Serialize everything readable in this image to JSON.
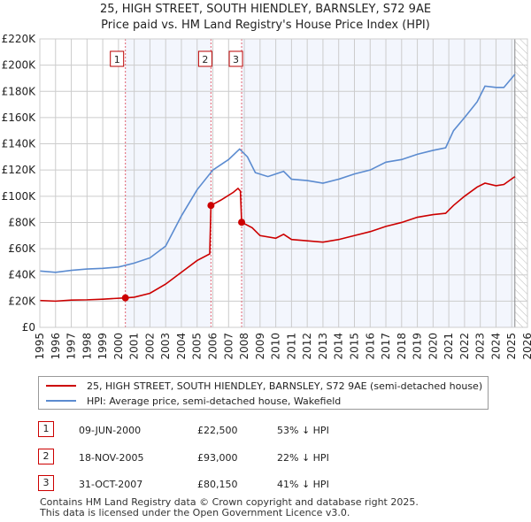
{
  "chart_data": {
    "type": "line",
    "title": "25, HIGH STREET, SOUTH HIENDLEY, BARNSLEY, S72 9AE",
    "subtitle": "Price paid vs. HM Land Registry's House Price Index (HPI)",
    "xlim": [
      1995,
      2026
    ],
    "ylim": [
      0,
      220000
    ],
    "x_ticks": [
      "1995",
      "1996",
      "1997",
      "1998",
      "1999",
      "2000",
      "2001",
      "2002",
      "2003",
      "2004",
      "2005",
      "2006",
      "2007",
      "2008",
      "2009",
      "2010",
      "2011",
      "2012",
      "2013",
      "2014",
      "2015",
      "2016",
      "2017",
      "2018",
      "2019",
      "2020",
      "2021",
      "2022",
      "2023",
      "2024",
      "2025",
      "2026"
    ],
    "y_ticks": [
      {
        "v": 0,
        "l": "£0"
      },
      {
        "v": 20000,
        "l": "£20K"
      },
      {
        "v": 40000,
        "l": "£40K"
      },
      {
        "v": 60000,
        "l": "£60K"
      },
      {
        "v": 80000,
        "l": "£80K"
      },
      {
        "v": 100000,
        "l": "£100K"
      },
      {
        "v": 120000,
        "l": "£120K"
      },
      {
        "v": 140000,
        "l": "£140K"
      },
      {
        "v": 160000,
        "l": "£160K"
      },
      {
        "v": 180000,
        "l": "£180K"
      },
      {
        "v": 200000,
        "l": "£200K"
      },
      {
        "v": 220000,
        "l": "£220K"
      }
    ],
    "series": [
      {
        "name": "25, HIGH STREET, SOUTH HIENDLEY, BARNSLEY, S72 9AE (semi-detached house)",
        "color": "#cc0000",
        "points": [
          [
            1995,
            20500
          ],
          [
            1996,
            20000
          ],
          [
            1997,
            20800
          ],
          [
            1998,
            21000
          ],
          [
            1999,
            21500
          ],
          [
            2000.44,
            22500
          ],
          [
            2001,
            23000
          ],
          [
            2002,
            26000
          ],
          [
            2003,
            33000
          ],
          [
            2004,
            42000
          ],
          [
            2005,
            51000
          ],
          [
            2005.8,
            56000
          ],
          [
            2005.88,
            93000
          ],
          [
            2006.5,
            97000
          ],
          [
            2007.3,
            103000
          ],
          [
            2007.6,
            106000
          ],
          [
            2007.75,
            104000
          ],
          [
            2007.83,
            80150
          ],
          [
            2008.5,
            76000
          ],
          [
            2009,
            70000
          ],
          [
            2010,
            68000
          ],
          [
            2010.5,
            71000
          ],
          [
            2011,
            67000
          ],
          [
            2012,
            66000
          ],
          [
            2013,
            65000
          ],
          [
            2014,
            67000
          ],
          [
            2015,
            70000
          ],
          [
            2016,
            73000
          ],
          [
            2017,
            77000
          ],
          [
            2018,
            80000
          ],
          [
            2019,
            84000
          ],
          [
            2020,
            86000
          ],
          [
            2020.8,
            87000
          ],
          [
            2021.3,
            93000
          ],
          [
            2022,
            100000
          ],
          [
            2022.8,
            107000
          ],
          [
            2023.3,
            110000
          ],
          [
            2024,
            108000
          ],
          [
            2024.5,
            109000
          ],
          [
            2025.2,
            115000
          ]
        ]
      },
      {
        "name": "HPI: Average price, semi-detached house, Wakefield",
        "color": "#5b8bd0",
        "points": [
          [
            1995,
            43000
          ],
          [
            1996,
            42000
          ],
          [
            1997,
            43500
          ],
          [
            1998,
            44500
          ],
          [
            1999,
            45000
          ],
          [
            2000,
            46000
          ],
          [
            2001,
            49000
          ],
          [
            2002,
            53000
          ],
          [
            2003,
            62000
          ],
          [
            2004,
            85000
          ],
          [
            2005,
            105000
          ],
          [
            2006,
            120000
          ],
          [
            2007,
            128000
          ],
          [
            2007.7,
            136000
          ],
          [
            2008.2,
            130000
          ],
          [
            2008.7,
            118000
          ],
          [
            2009.5,
            115000
          ],
          [
            2010,
            117000
          ],
          [
            2010.5,
            119000
          ],
          [
            2011,
            113000
          ],
          [
            2012,
            112000
          ],
          [
            2013,
            110000
          ],
          [
            2014,
            113000
          ],
          [
            2015,
            117000
          ],
          [
            2016,
            120000
          ],
          [
            2017,
            126000
          ],
          [
            2018,
            128000
          ],
          [
            2019,
            132000
          ],
          [
            2020,
            135000
          ],
          [
            2020.8,
            137000
          ],
          [
            2021.3,
            150000
          ],
          [
            2022,
            160000
          ],
          [
            2022.8,
            172000
          ],
          [
            2023.3,
            184000
          ],
          [
            2024,
            183000
          ],
          [
            2024.5,
            183000
          ],
          [
            2025.2,
            193000
          ]
        ]
      }
    ],
    "sales": [
      {
        "id": "1",
        "x": 2000.44,
        "y": 22500
      },
      {
        "id": "2",
        "x": 2005.88,
        "y": 93000
      },
      {
        "id": "3",
        "x": 2007.83,
        "y": 80150
      }
    ],
    "data_end": 2025.2
  },
  "legend": {
    "property": "25, HIGH STREET, SOUTH HIENDLEY, BARNSLEY, S72 9AE (semi-detached house)",
    "hpi": "HPI: Average price, semi-detached house, Wakefield"
  },
  "transactions": [
    {
      "num": "1",
      "date": "09-JUN-2000",
      "price": "£22,500",
      "hpi": "53% ↓ HPI"
    },
    {
      "num": "2",
      "date": "18-NOV-2005",
      "price": "£93,000",
      "hpi": "22% ↓ HPI"
    },
    {
      "num": "3",
      "date": "31-OCT-2007",
      "price": "£80,150",
      "hpi": "41% ↓ HPI"
    }
  ],
  "footer": {
    "line1": "Contains HM Land Registry data © Crown copyright and database right 2025.",
    "line2": "This data is licensed under the Open Government Licence v3.0."
  }
}
